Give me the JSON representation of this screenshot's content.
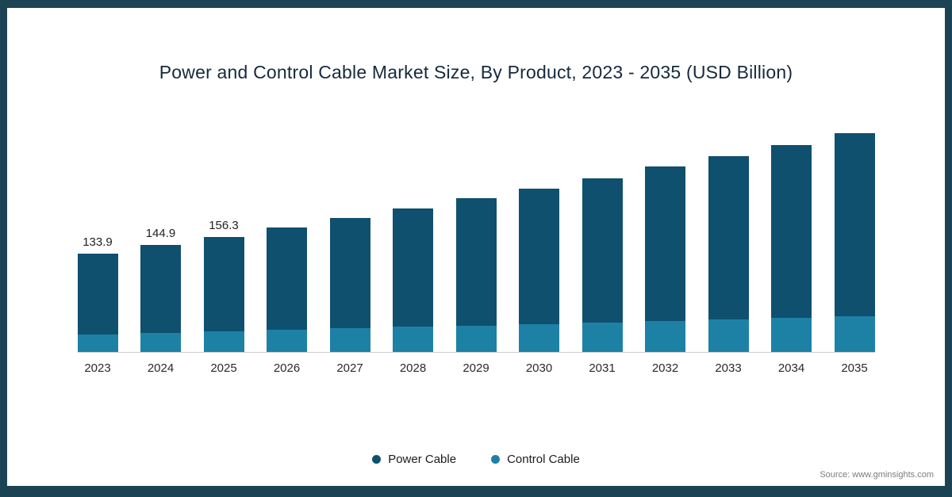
{
  "colors": {
    "frame": "#1b4353",
    "power_cable": "#0f506f",
    "control_cable": "#1d81a6",
    "axis_line": "#cfcfcf"
  },
  "source": "Source: www.gminsights.com",
  "chart_data": {
    "type": "bar",
    "stacked": true,
    "title": "Power and Control Cable Market Size, By Product, 2023 - 2035 (USD Billion)",
    "unit": "USD Billion",
    "grid": false,
    "legend_position": "bottom",
    "categories": [
      "2023",
      "2024",
      "2025",
      "2026",
      "2027",
      "2028",
      "2029",
      "2030",
      "2031",
      "2032",
      "2033",
      "2034",
      "2035"
    ],
    "series": [
      {
        "name": "Power Cable",
        "color": "#0f506f",
        "values": [
          109.9,
          118.9,
          128.3,
          139.0,
          150.0,
          161.0,
          173.0,
          184.0,
          196.0,
          210.0,
          222.0,
          235.0,
          249.0
        ]
      },
      {
        "name": "Control Cable",
        "color": "#1d81a6",
        "values": [
          24.0,
          26.0,
          28.0,
          30.0,
          32.0,
          34.0,
          36.0,
          38.0,
          40.0,
          42.0,
          44.0,
          46.0,
          48.0
        ]
      }
    ],
    "totals": [
      133.9,
      144.9,
      156.3,
      169.0,
      182.0,
      195.0,
      209.0,
      222.0,
      236.0,
      252.0,
      266.0,
      281.0,
      297.0
    ],
    "bar_labels": [
      "133.9",
      "144.9",
      "156.3",
      "",
      "",
      "",
      "",
      "",
      "",
      "",
      "",
      "",
      ""
    ]
  }
}
